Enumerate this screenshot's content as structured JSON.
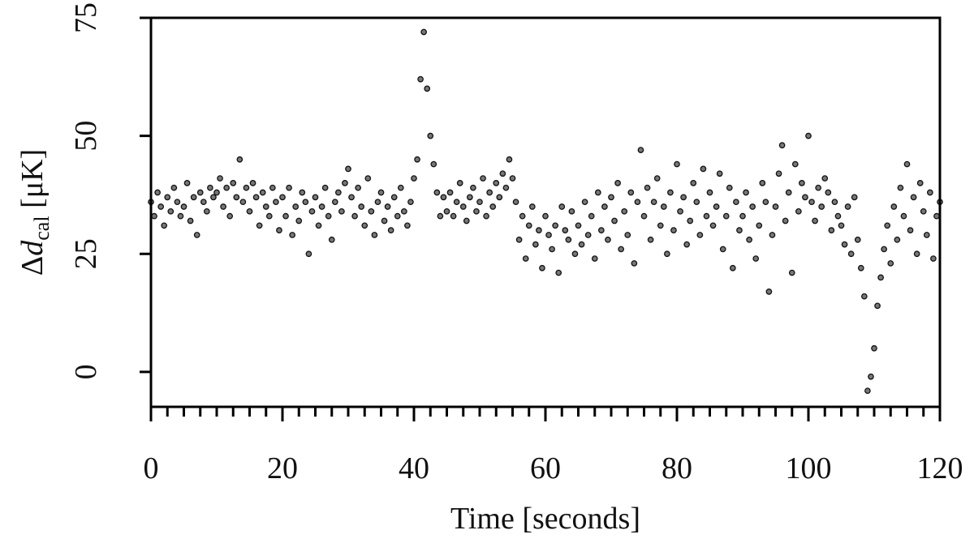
{
  "chart_data": {
    "type": "scatter",
    "xlabel": "Time [seconds]",
    "ylabel": {
      "delta": "Δ",
      "var": "d",
      "sub": "cal",
      "unit": " [μK]"
    },
    "xlim": [
      0,
      120
    ],
    "ylim": [
      -7.4,
      75
    ],
    "xticks": [
      0,
      20,
      40,
      60,
      80,
      100,
      120
    ],
    "xminorticks": [
      2.5,
      5,
      7.5,
      10,
      12.5,
      15,
      17.5,
      22.5,
      25,
      27.5,
      30,
      32.5,
      35,
      37.5,
      42.5,
      45,
      47.5,
      50,
      52.5,
      55,
      57.5,
      62.5,
      65,
      67.5,
      70,
      72.5,
      75,
      77.5,
      82.5,
      85,
      87.5,
      90,
      92.5,
      95,
      97.5,
      102.5,
      105,
      107.5,
      110,
      112.5,
      115,
      117.5
    ],
    "yticks": [
      0,
      25,
      50,
      75
    ],
    "color": "#777777",
    "x": [
      0,
      0.5,
      1,
      1.5,
      2,
      2.5,
      3,
      3.5,
      4,
      4.5,
      5,
      5.5,
      6,
      6.5,
      7,
      7.5,
      8,
      8.5,
      9,
      9.5,
      10,
      10.5,
      11,
      11.5,
      12,
      12.5,
      13,
      13.5,
      14,
      14.5,
      15,
      15.5,
      16,
      16.5,
      17,
      17.5,
      18,
      18.5,
      19,
      19.5,
      20,
      20.5,
      21,
      21.5,
      22,
      22.5,
      23,
      23.5,
      24,
      24.5,
      25,
      25.5,
      26,
      26.5,
      27,
      27.5,
      28,
      28.5,
      29,
      29.5,
      30,
      30.5,
      31,
      31.5,
      32,
      32.5,
      33,
      33.5,
      34,
      34.5,
      35,
      35.5,
      36,
      36.5,
      37,
      37.5,
      38,
      38.5,
      39,
      39.5,
      40,
      40.5,
      41,
      41.5,
      42,
      42.5,
      43,
      43.5,
      44,
      44.5,
      45,
      45.5,
      46,
      46.5,
      47,
      47.5,
      48,
      48.5,
      49,
      49.5,
      50,
      50.5,
      51,
      51.5,
      52,
      52.5,
      53,
      53.5,
      54,
      54.5,
      55,
      55.5,
      56,
      56.5,
      57,
      57.5,
      58,
      58.5,
      59,
      59.5,
      60,
      60.5,
      61,
      61.5,
      62,
      62.5,
      63,
      63.5,
      64,
      64.5,
      65,
      65.5,
      66,
      66.5,
      67,
      67.5,
      68,
      68.5,
      69,
      69.5,
      70,
      70.5,
      71,
      71.5,
      72,
      72.5,
      73,
      73.5,
      74,
      74.5,
      75,
      75.5,
      76,
      76.5,
      77,
      77.5,
      78,
      78.5,
      79,
      79.5,
      80,
      80.5,
      81,
      81.5,
      82,
      82.5,
      83,
      83.5,
      84,
      84.5,
      85,
      85.5,
      86,
      86.5,
      87,
      87.5,
      88,
      88.5,
      89,
      89.5,
      90,
      90.5,
      91,
      91.5,
      92,
      92.5,
      93,
      93.5,
      94,
      94.5,
      95,
      95.5,
      96,
      96.5,
      97,
      97.5,
      98,
      98.5,
      99,
      99.5,
      100,
      100.5,
      101,
      101.5,
      102,
      102.5,
      103,
      103.5,
      104,
      104.5,
      105,
      105.5,
      106,
      106.5,
      107,
      107.5,
      108,
      108.5,
      109,
      109.5,
      110,
      110.5,
      111,
      111.5,
      112,
      112.5,
      113,
      113.5,
      114,
      114.5,
      115,
      115.5,
      116,
      116.5,
      117,
      117.5,
      118,
      118.5,
      119,
      119.5,
      120
    ],
    "y": [
      36,
      33,
      38,
      35,
      31,
      37,
      34,
      39,
      36,
      33,
      35,
      40,
      32,
      37,
      29,
      38,
      36,
      34,
      39,
      37,
      38,
      41,
      35,
      39,
      33,
      40,
      37,
      45,
      36,
      39,
      34,
      40,
      37,
      31,
      38,
      35,
      33,
      39,
      36,
      30,
      37,
      33,
      39,
      29,
      35,
      32,
      38,
      36,
      25,
      34,
      37,
      31,
      35,
      39,
      33,
      28,
      36,
      38,
      34,
      40,
      43,
      37,
      33,
      39,
      35,
      31,
      41,
      34,
      29,
      36,
      38,
      32,
      35,
      30,
      37,
      33,
      39,
      34,
      31,
      36,
      41,
      45,
      62,
      72,
      60,
      50,
      44,
      38,
      33,
      37,
      34,
      38,
      33,
      36,
      40,
      35,
      32,
      37,
      39,
      34,
      36,
      41,
      33,
      38,
      35,
      40,
      37,
      42,
      39,
      45,
      41,
      36,
      28,
      33,
      24,
      31,
      35,
      27,
      30,
      22,
      33,
      29,
      26,
      31,
      21,
      35,
      30,
      28,
      34,
      25,
      31,
      27,
      36,
      29,
      33,
      24,
      38,
      30,
      35,
      28,
      37,
      32,
      40,
      26,
      34,
      29,
      38,
      23,
      36,
      47,
      33,
      39,
      28,
      36,
      41,
      31,
      35,
      25,
      38,
      30,
      44,
      34,
      37,
      27,
      32,
      40,
      36,
      29,
      43,
      33,
      38,
      31,
      35,
      42,
      26,
      33,
      39,
      22,
      36,
      30,
      33,
      38,
      28,
      35,
      24,
      31,
      40,
      36,
      17,
      29,
      35,
      42,
      48,
      32,
      38,
      21,
      44,
      34,
      40,
      37,
      50,
      36,
      32,
      39,
      35,
      41,
      38,
      30,
      36,
      33,
      31,
      27,
      35,
      25,
      37,
      28,
      22,
      16,
      -4,
      -1,
      5,
      14,
      20,
      26,
      31,
      23,
      35,
      28,
      39,
      33,
      44,
      30,
      37,
      25,
      40,
      34,
      29,
      38,
      24,
      33,
      36
    ]
  }
}
